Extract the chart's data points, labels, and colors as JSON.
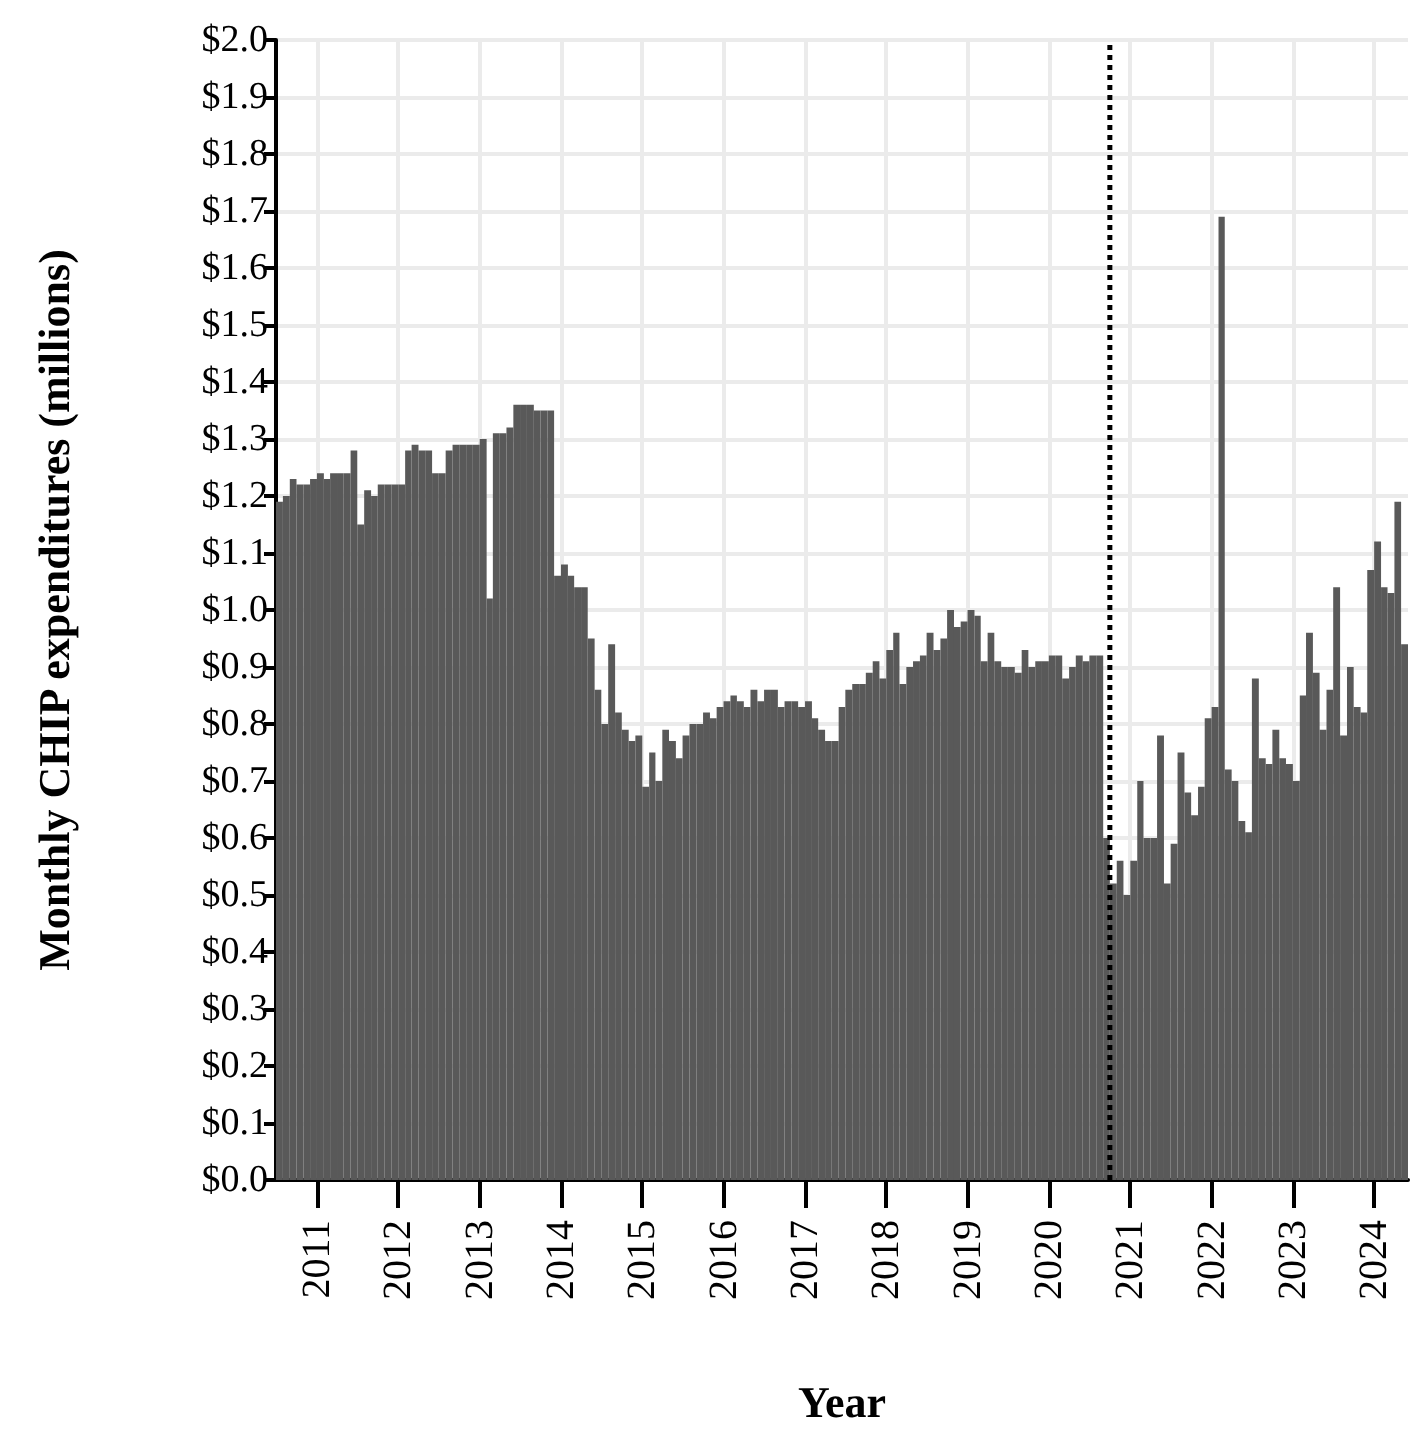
{
  "chart_data": {
    "type": "bar",
    "xlabel": "Year",
    "ylabel": "Monthly CHIP expenditures (millions)",
    "x": [
      "2010-07",
      "2010-08",
      "2010-09",
      "2010-10",
      "2010-11",
      "2010-12",
      "2011-01",
      "2011-02",
      "2011-03",
      "2011-04",
      "2011-05",
      "2011-06",
      "2011-07",
      "2011-08",
      "2011-09",
      "2011-10",
      "2011-11",
      "2011-12",
      "2012-01",
      "2012-02",
      "2012-03",
      "2012-04",
      "2012-05",
      "2012-06",
      "2012-07",
      "2012-08",
      "2012-09",
      "2012-10",
      "2012-11",
      "2012-12",
      "2013-01",
      "2013-02",
      "2013-03",
      "2013-04",
      "2013-05",
      "2013-06",
      "2013-07",
      "2013-08",
      "2013-09",
      "2013-10",
      "2013-11",
      "2013-12",
      "2014-01",
      "2014-02",
      "2014-03",
      "2014-04",
      "2014-05",
      "2014-06",
      "2014-07",
      "2014-08",
      "2014-09",
      "2014-10",
      "2014-11",
      "2014-12",
      "2015-01",
      "2015-02",
      "2015-03",
      "2015-04",
      "2015-05",
      "2015-06",
      "2015-07",
      "2015-08",
      "2015-09",
      "2015-10",
      "2015-11",
      "2015-12",
      "2016-01",
      "2016-02",
      "2016-03",
      "2016-04",
      "2016-05",
      "2016-06",
      "2016-07",
      "2016-08",
      "2016-09",
      "2016-10",
      "2016-11",
      "2016-12",
      "2017-01",
      "2017-02",
      "2017-03",
      "2017-04",
      "2017-05",
      "2017-06",
      "2017-07",
      "2017-08",
      "2017-09",
      "2017-10",
      "2017-11",
      "2017-12",
      "2018-01",
      "2018-02",
      "2018-03",
      "2018-04",
      "2018-05",
      "2018-06",
      "2018-07",
      "2018-08",
      "2018-09",
      "2018-10",
      "2018-11",
      "2018-12",
      "2019-01",
      "2019-02",
      "2019-03",
      "2019-04",
      "2019-05",
      "2019-06",
      "2019-07",
      "2019-08",
      "2019-09",
      "2019-10",
      "2019-11",
      "2019-12",
      "2020-01",
      "2020-02",
      "2020-03",
      "2020-04",
      "2020-05",
      "2020-06",
      "2020-07",
      "2020-08",
      "2020-09",
      "2020-10",
      "2020-11",
      "2020-12",
      "2021-01",
      "2021-02",
      "2021-03",
      "2021-04",
      "2021-05",
      "2021-06",
      "2021-07",
      "2021-08",
      "2021-09",
      "2021-10",
      "2021-11",
      "2021-12",
      "2022-01",
      "2022-02",
      "2022-03",
      "2022-04",
      "2022-05",
      "2022-06",
      "2022-07",
      "2022-08",
      "2022-09",
      "2022-10",
      "2022-11",
      "2022-12",
      "2023-01",
      "2023-02",
      "2023-03",
      "2023-04",
      "2023-05",
      "2023-06",
      "2023-07",
      "2023-08",
      "2023-09",
      "2023-10",
      "2023-11",
      "2023-12",
      "2024-01",
      "2024-02",
      "2024-03",
      "2024-04",
      "2024-05"
    ],
    "values": [
      1.19,
      1.2,
      1.23,
      1.22,
      1.22,
      1.23,
      1.24,
      1.23,
      1.24,
      1.24,
      1.24,
      1.28,
      1.15,
      1.21,
      1.2,
      1.22,
      1.22,
      1.22,
      1.22,
      1.28,
      1.29,
      1.28,
      1.28,
      1.24,
      1.24,
      1.28,
      1.29,
      1.29,
      1.29,
      1.29,
      1.3,
      1.02,
      1.31,
      1.31,
      1.32,
      1.36,
      1.36,
      1.36,
      1.35,
      1.35,
      1.35,
      1.06,
      1.08,
      1.06,
      1.04,
      1.04,
      0.95,
      0.86,
      0.8,
      0.94,
      0.82,
      0.79,
      0.77,
      0.78,
      0.69,
      0.75,
      0.7,
      0.79,
      0.77,
      0.74,
      0.78,
      0.8,
      0.8,
      0.82,
      0.81,
      0.83,
      0.84,
      0.85,
      0.84,
      0.83,
      0.86,
      0.84,
      0.86,
      0.86,
      0.83,
      0.84,
      0.84,
      0.83,
      0.84,
      0.81,
      0.79,
      0.77,
      0.77,
      0.83,
      0.86,
      0.87,
      0.87,
      0.89,
      0.91,
      0.88,
      0.93,
      0.96,
      0.87,
      0.9,
      0.91,
      0.92,
      0.96,
      0.93,
      0.95,
      1.0,
      0.97,
      0.98,
      1.0,
      0.99,
      0.91,
      0.96,
      0.91,
      0.9,
      0.9,
      0.89,
      0.93,
      0.9,
      0.91,
      0.91,
      0.92,
      0.92,
      0.88,
      0.9,
      0.92,
      0.91,
      0.92,
      0.92,
      0.6,
      0.52,
      0.56,
      0.5,
      0.56,
      0.7,
      0.6,
      0.6,
      0.78,
      0.52,
      0.59,
      0.75,
      0.68,
      0.64,
      0.69,
      0.81,
      0.83,
      1.69,
      0.72,
      0.7,
      0.63,
      0.61,
      0.88,
      0.74,
      0.73,
      0.79,
      0.74,
      0.73,
      0.7,
      0.85,
      0.96,
      0.89,
      0.79,
      0.86,
      1.04,
      0.78,
      0.9,
      0.83,
      0.82,
      1.07,
      1.12,
      1.04,
      1.03,
      1.19,
      0.94
    ],
    "color": "#595959",
    "xlim": [
      "2010-07",
      "2024-06"
    ],
    "xticks": [
      "2011",
      "2012",
      "2013",
      "2014",
      "2015",
      "2016",
      "2017",
      "2018",
      "2019",
      "2020",
      "2021",
      "2022",
      "2023",
      "2024"
    ],
    "ylim": [
      0,
      2.0
    ],
    "yticks": [
      {
        "value": 0,
        "label": "$0.0"
      },
      {
        "value": 0.1,
        "label": "$0.1"
      },
      {
        "value": 0.2,
        "label": "$0.2"
      },
      {
        "value": 0.3,
        "label": "$0.3"
      },
      {
        "value": 0.4,
        "label": "$0.4"
      },
      {
        "value": 0.5,
        "label": "$0.5"
      },
      {
        "value": 0.6,
        "label": "$0.6"
      },
      {
        "value": 0.7,
        "label": "$0.7"
      },
      {
        "value": 0.8,
        "label": "$0.8"
      },
      {
        "value": 0.9,
        "label": "$0.9"
      },
      {
        "value": 1.0,
        "label": "$1.0"
      },
      {
        "value": 1.1,
        "label": "$1.1"
      },
      {
        "value": 1.2,
        "label": "$1.2"
      },
      {
        "value": 1.3,
        "label": "$1.3"
      },
      {
        "value": 1.4,
        "label": "$1.4"
      },
      {
        "value": 1.5,
        "label": "$1.5"
      },
      {
        "value": 1.6,
        "label": "$1.6"
      },
      {
        "value": 1.7,
        "label": "$1.7"
      },
      {
        "value": 1.8,
        "label": "$1.8"
      },
      {
        "value": 1.9,
        "label": "$1.9"
      },
      {
        "value": 2.0,
        "label": "$2.0"
      }
    ],
    "ref_lines": [
      {
        "axis": "x",
        "value": "2020-10",
        "color": "#000000",
        "line_style": "dotted"
      }
    ],
    "grid": true
  }
}
